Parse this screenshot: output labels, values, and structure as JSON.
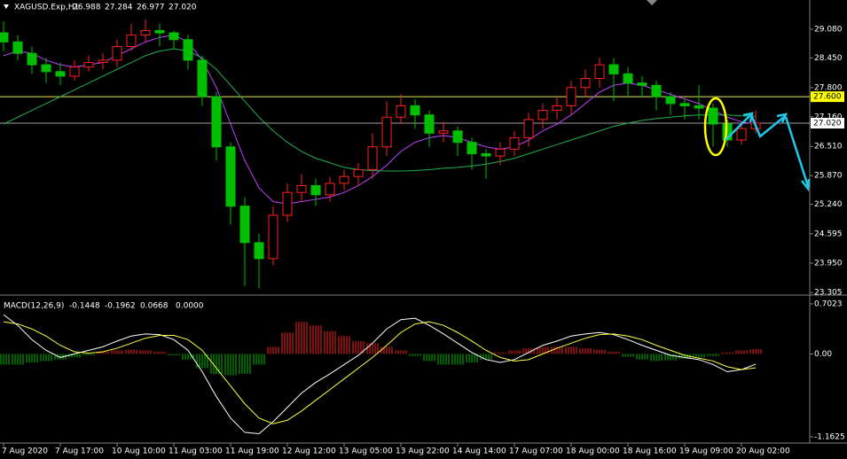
{
  "chart_data": {
    "type": "candlestick",
    "symbol": "XAGUSD.Exp,H1",
    "header_ohlc": [
      26.988,
      27.284,
      26.977,
      {
        "value": 27.02,
        "label": "27.020"
      }
    ],
    "up_color": "#ff2020",
    "down_color": "#00c000",
    "open": [
      29.0,
      28.8,
      28.55,
      28.3,
      28.15,
      28.05,
      28.25,
      28.35,
      28.4,
      28.7,
      28.95,
      29.05,
      29.0,
      28.85,
      28.4,
      27.6,
      26.5,
      25.2,
      24.4,
      24.05,
      25.0,
      25.5,
      25.65,
      25.45,
      25.7,
      25.85,
      26.0,
      26.5,
      27.15,
      27.4,
      27.2,
      26.8,
      26.85,
      26.6,
      26.35,
      26.3,
      26.45,
      26.7,
      27.1,
      27.3,
      27.4,
      27.8,
      28.0,
      28.3,
      28.1,
      27.9,
      27.85,
      27.6,
      27.45,
      27.4,
      27.35,
      27.0,
      26.65,
      26.9
    ],
    "high": [
      29.25,
      28.95,
      28.7,
      28.45,
      28.35,
      28.4,
      28.5,
      28.55,
      28.85,
      29.2,
      29.3,
      29.2,
      29.05,
      28.95,
      28.5,
      27.7,
      26.6,
      25.4,
      24.6,
      25.2,
      25.7,
      25.9,
      25.8,
      25.85,
      26.0,
      26.15,
      26.8,
      27.5,
      27.65,
      27.55,
      27.3,
      27.05,
      26.95,
      26.7,
      26.45,
      26.6,
      26.85,
      27.25,
      27.45,
      27.6,
      27.95,
      28.2,
      28.45,
      28.45,
      28.25,
      28.05,
      27.95,
      27.7,
      27.55,
      27.85,
      27.45,
      27.1,
      27.05,
      27.3
    ],
    "low": [
      28.6,
      28.4,
      28.1,
      27.9,
      27.85,
      27.95,
      28.15,
      28.2,
      28.25,
      28.6,
      28.8,
      28.7,
      28.65,
      28.2,
      27.4,
      26.2,
      24.8,
      23.45,
      23.4,
      23.9,
      24.85,
      25.3,
      25.2,
      25.3,
      25.55,
      25.65,
      25.8,
      26.3,
      27.0,
      26.9,
      26.5,
      26.6,
      26.3,
      26.0,
      25.8,
      26.1,
      26.3,
      26.5,
      26.9,
      27.1,
      27.2,
      27.6,
      27.8,
      27.5,
      27.6,
      27.6,
      27.3,
      27.2,
      27.1,
      27.1,
      26.5,
      26.5,
      26.55,
      26.8
    ],
    "close": [
      28.8,
      28.55,
      28.3,
      28.15,
      28.05,
      28.25,
      28.35,
      28.4,
      28.7,
      28.95,
      29.05,
      29.0,
      28.85,
      28.4,
      27.6,
      26.5,
      25.2,
      24.4,
      24.05,
      25.0,
      25.5,
      25.65,
      25.45,
      25.7,
      25.85,
      26.0,
      26.5,
      27.15,
      27.4,
      27.2,
      26.8,
      26.85,
      26.6,
      26.35,
      26.3,
      26.45,
      26.7,
      27.1,
      27.3,
      27.4,
      27.8,
      28.0,
      28.3,
      28.1,
      27.9,
      27.85,
      27.6,
      27.45,
      27.4,
      27.35,
      27.0,
      26.65,
      26.9,
      27.02
    ],
    "overlays": [
      {
        "color": "#c040ff",
        "values": [
          28.5,
          28.6,
          28.55,
          28.4,
          28.3,
          28.25,
          28.3,
          28.35,
          28.5,
          28.65,
          28.8,
          28.9,
          28.95,
          28.8,
          28.4,
          27.8,
          27.0,
          26.2,
          25.6,
          25.3,
          25.25,
          25.3,
          25.35,
          25.4,
          25.5,
          25.65,
          25.85,
          26.1,
          26.4,
          26.6,
          26.7,
          26.75,
          26.7,
          26.6,
          26.5,
          26.45,
          26.5,
          26.65,
          26.85,
          27.0,
          27.2,
          27.45,
          27.7,
          27.85,
          27.9,
          27.85,
          27.75,
          27.65,
          27.55,
          27.45,
          27.3,
          27.15,
          27.05,
          27.0
        ]
      },
      {
        "color": "#20b050",
        "values": [
          27.0,
          27.15,
          27.3,
          27.45,
          27.6,
          27.75,
          27.9,
          28.05,
          28.2,
          28.35,
          28.5,
          28.6,
          28.65,
          28.6,
          28.45,
          28.2,
          27.85,
          27.5,
          27.15,
          26.85,
          26.6,
          26.4,
          26.25,
          26.15,
          26.05,
          26.0,
          25.98,
          25.97,
          25.97,
          25.98,
          26.0,
          26.03,
          26.05,
          26.08,
          26.12,
          26.18,
          26.25,
          26.35,
          26.45,
          26.55,
          26.65,
          26.75,
          26.85,
          26.95,
          27.02,
          27.08,
          27.12,
          27.15,
          27.18,
          27.2,
          27.2,
          27.2,
          27.18,
          27.17
        ]
      }
    ],
    "hlines": [
      {
        "value": 27.6,
        "label": "27.600",
        "color": "#e8e860",
        "label_bg": "#ffff00"
      },
      {
        "value": 27.02,
        "label": "27.020",
        "color": "#a0a0a0",
        "label_bg": "#ffffff"
      }
    ],
    "ylim": [
      23.27,
      29.72
    ],
    "yticks": [
      {
        "value": 29.08,
        "label": "29.080"
      },
      {
        "value": 28.45,
        "label": "28.450"
      },
      {
        "value": 27.8,
        "label": "27.800"
      },
      {
        "value": 27.16,
        "label": "27.160"
      },
      {
        "value": 26.51,
        "label": "26.510"
      },
      {
        "value": 25.87,
        "label": "25.870"
      },
      {
        "value": 25.24,
        "label": "25.240"
      },
      24.595,
      {
        "value": 23.95,
        "label": "23.950"
      },
      23.305
    ],
    "xlim": [
      -0.25,
      56.81
    ],
    "xticks": [
      {
        "value": 0,
        "label": "7 Aug 2020"
      },
      {
        "value": 4,
        "label": "7 Aug 17:00"
      },
      {
        "value": 8,
        "label": "10 Aug 10:00"
      },
      {
        "value": 12,
        "label": "11 Aug 03:00"
      },
      {
        "value": 16,
        "label": "11 Aug 19:00"
      },
      {
        "value": 20,
        "label": "12 Aug 12:00"
      },
      {
        "value": 24,
        "label": "13 Aug 05:00"
      },
      {
        "value": 28,
        "label": "13 Aug 22:00"
      },
      {
        "value": 32,
        "label": "14 Aug 14:00"
      },
      {
        "value": 36,
        "label": "17 Aug 07:00"
      },
      {
        "value": 40,
        "label": "18 Aug 00:00"
      },
      {
        "value": 44,
        "label": "18 Aug 16:00"
      },
      {
        "value": 48,
        "label": "19 Aug 09:00"
      },
      {
        "value": 52,
        "label": "20 Aug 02:00"
      }
    ],
    "macd": {
      "title": "MACD(12,26,9)",
      "readout": [
        -0.1448,
        -0.1962,
        0.0668,
        {
          "value": 0,
          "label": "0.0000"
        }
      ],
      "main": {
        "color": "#ffffff",
        "values": [
          0.55,
          0.4,
          0.2,
          0.05,
          -0.05,
          0.0,
          0.05,
          0.1,
          0.18,
          0.25,
          0.28,
          0.27,
          0.2,
          0.05,
          -0.25,
          -0.6,
          -0.9,
          -1.1,
          -1.12,
          -0.95,
          -0.75,
          -0.55,
          -0.4,
          -0.28,
          -0.15,
          -0.02,
          0.15,
          0.35,
          0.48,
          0.5,
          0.4,
          0.28,
          0.15,
          0.02,
          -0.08,
          -0.12,
          -0.08,
          0.02,
          0.12,
          0.18,
          0.25,
          0.28,
          0.3,
          0.27,
          0.2,
          0.12,
          0.05,
          -0.02,
          -0.05,
          -0.08,
          -0.15,
          -0.25,
          -0.22,
          -0.1448
        ]
      },
      "signal": {
        "color": "#ffff40",
        "values": [
          0.45,
          0.42,
          0.35,
          0.25,
          0.12,
          0.03,
          0.01,
          0.03,
          0.08,
          0.15,
          0.22,
          0.26,
          0.26,
          0.2,
          0.05,
          -0.2,
          -0.45,
          -0.7,
          -0.9,
          -0.98,
          -0.93,
          -0.8,
          -0.65,
          -0.5,
          -0.35,
          -0.2,
          -0.05,
          0.12,
          0.3,
          0.42,
          0.45,
          0.4,
          0.3,
          0.18,
          0.05,
          -0.05,
          -0.1,
          -0.08,
          0.0,
          0.08,
          0.15,
          0.22,
          0.27,
          0.28,
          0.25,
          0.2,
          0.12,
          0.05,
          -0.02,
          -0.06,
          -0.1,
          -0.18,
          -0.22,
          -0.1962
        ]
      },
      "histogram": [
        -0.15,
        -0.15,
        -0.12,
        -0.1,
        -0.08,
        -0.05,
        -0.02,
        0.03,
        0.05,
        0.06,
        0.05,
        0.03,
        -0.02,
        -0.08,
        -0.2,
        -0.28,
        -0.3,
        -0.28,
        -0.15,
        0.1,
        0.3,
        0.45,
        0.4,
        0.32,
        0.25,
        0.18,
        0.15,
        0.1,
        0.05,
        -0.03,
        -0.1,
        -0.15,
        -0.15,
        -0.12,
        -0.08,
        0.02,
        0.05,
        0.08,
        0.1,
        0.1,
        0.1,
        0.08,
        0.06,
        0.03,
        -0.04,
        -0.08,
        -0.1,
        -0.09,
        -0.07,
        -0.05,
        -0.03,
        0.02,
        0.05,
        0.0668
      ],
      "ylim": [
        -1.25,
        0.8
      ],
      "yticks": [
        0.7023,
        {
          "value": 0,
          "label": "0.00"
        },
        -1.1625
      ]
    }
  }
}
